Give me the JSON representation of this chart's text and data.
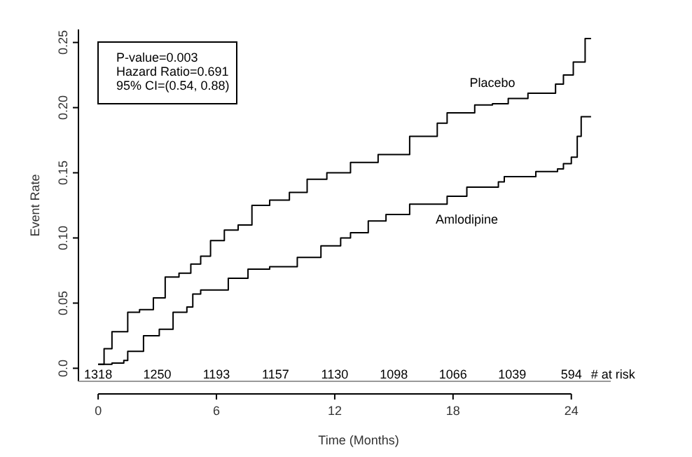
{
  "chart_data": {
    "type": "step",
    "xlabel": "Time (Months)",
    "ylabel": "Event Rate",
    "xlim": [
      -1,
      26
    ],
    "ylim": [
      -0.01,
      0.26
    ],
    "xticks": [
      0,
      6,
      12,
      18,
      24
    ],
    "yticks": [
      {
        "value": 0,
        "label": "0.0"
      },
      0.05,
      {
        "value": 0.1,
        "label": "0.10"
      },
      0.15,
      {
        "value": 0.2,
        "label": "0.20"
      },
      0.25
    ],
    "series": [
      {
        "name": "Placebo",
        "color": "#000000",
        "x": [
          0,
          0.3,
          0.7,
          1.5,
          2.1,
          2.8,
          3.4,
          4.1,
          4.7,
          5.2,
          5.7,
          6.4,
          7.1,
          7.8,
          8.7,
          9.7,
          10.6,
          11.6,
          12.8,
          14.2,
          15.8,
          17.2,
          17.7,
          19.1,
          20,
          20.8,
          21.8,
          22.8,
          23.2,
          23.6,
          24.1,
          24.6,
          24.7,
          25
        ],
        "values": [
          0.003,
          0.015,
          0.028,
          0.043,
          0.045,
          0.054,
          0.07,
          0.073,
          0.08,
          0.086,
          0.098,
          0.106,
          0.11,
          0.125,
          0.129,
          0.135,
          0.145,
          0.15,
          0.158,
          0.164,
          0.178,
          0.188,
          0.196,
          0.202,
          0.203,
          0.207,
          0.211,
          0.211,
          0.218,
          0.225,
          0.235,
          0.235,
          0.253,
          0.253
        ]
      },
      {
        "name": "Amlodipine",
        "color": "#000000",
        "x": [
          0,
          0.7,
          1.3,
          1.5,
          2.3,
          3.1,
          3.8,
          4.5,
          4.8,
          5.2,
          6,
          6.6,
          7.6,
          8.7,
          9.2,
          10.1,
          11.3,
          12.3,
          12.8,
          13.7,
          14.6,
          15.8,
          17.7,
          18.7,
          20.3,
          20.6,
          22.2,
          23.3,
          23.6,
          24,
          24.3,
          24.5,
          25
        ],
        "values": [
          0.003,
          0.004,
          0.006,
          0.013,
          0.025,
          0.03,
          0.043,
          0.047,
          0.057,
          0.06,
          0.06,
          0.069,
          0.076,
          0.078,
          0.078,
          0.085,
          0.094,
          0.1,
          0.104,
          0.113,
          0.118,
          0.126,
          0.132,
          0.139,
          0.143,
          0.147,
          0.151,
          0.153,
          0.157,
          0.162,
          0.178,
          0.193,
          0.193
        ]
      }
    ],
    "annotations": [
      "P-value=0.003",
      "Hazard Ratio=0.691",
      "95% CI=(0.54, 0.88)",
      "1318",
      "1250",
      "1193",
      "1157",
      "1130",
      "1098",
      "1066",
      "1039",
      "594",
      "# at risk"
    ]
  }
}
